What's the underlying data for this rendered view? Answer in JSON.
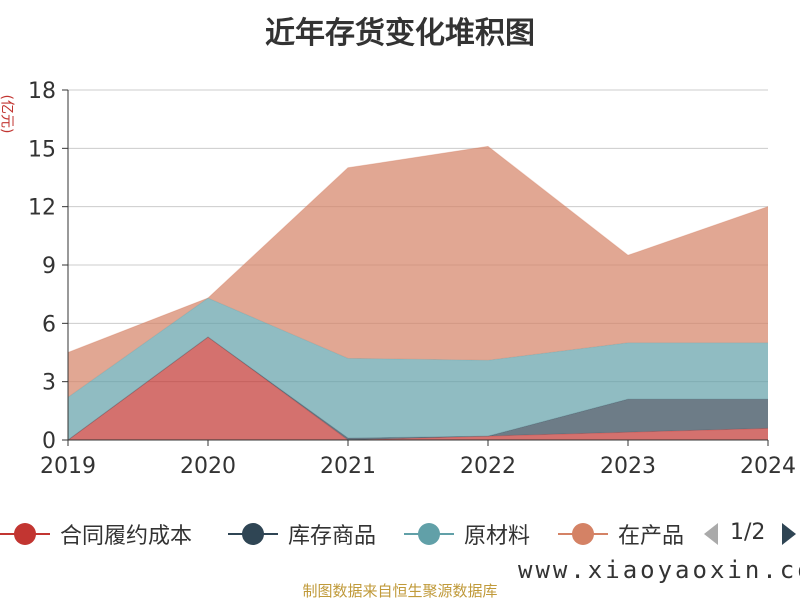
{
  "title": "近年存货变化堆积图",
  "y_unit": "(亿元)",
  "source": "制图数据来自恒生聚源数据库",
  "watermark": "www.xiaoyaoxin.com",
  "legend": {
    "items": [
      {
        "name": "合同履约成本",
        "color": "#c23531"
      },
      {
        "name": "库存商品",
        "color": "#2f4554"
      },
      {
        "name": "原材料",
        "color": "#61a0a8"
      },
      {
        "name": "在产品",
        "color": "#d48265"
      }
    ],
    "page": "1/2"
  },
  "chart_data": {
    "type": "area",
    "stacked": true,
    "title": "近年存货变化堆积图",
    "ylabel": "(亿元)",
    "x": [
      "2019",
      "2020",
      "2021",
      "2022",
      "2023",
      "2024"
    ],
    "ylim": [
      0,
      18
    ],
    "yticks": [
      0,
      3,
      6,
      9,
      12,
      15,
      18
    ],
    "grid": true,
    "legend_position": "bottom",
    "series": [
      {
        "name": "合同履约成本",
        "color": "#c23531",
        "values": [
          0.0,
          5.3,
          0.0,
          0.2,
          0.4,
          0.6
        ]
      },
      {
        "name": "库存商品",
        "color": "#2f4554",
        "values": [
          0.0,
          0.0,
          0.1,
          0.0,
          1.7,
          1.5
        ]
      },
      {
        "name": "原材料",
        "color": "#61a0a8",
        "values": [
          2.2,
          2.0,
          4.1,
          3.9,
          2.9,
          2.9
        ]
      },
      {
        "name": "在产品",
        "color": "#d48265",
        "values": [
          2.3,
          0.0,
          9.8,
          11.0,
          4.5,
          7.0
        ]
      }
    ]
  }
}
